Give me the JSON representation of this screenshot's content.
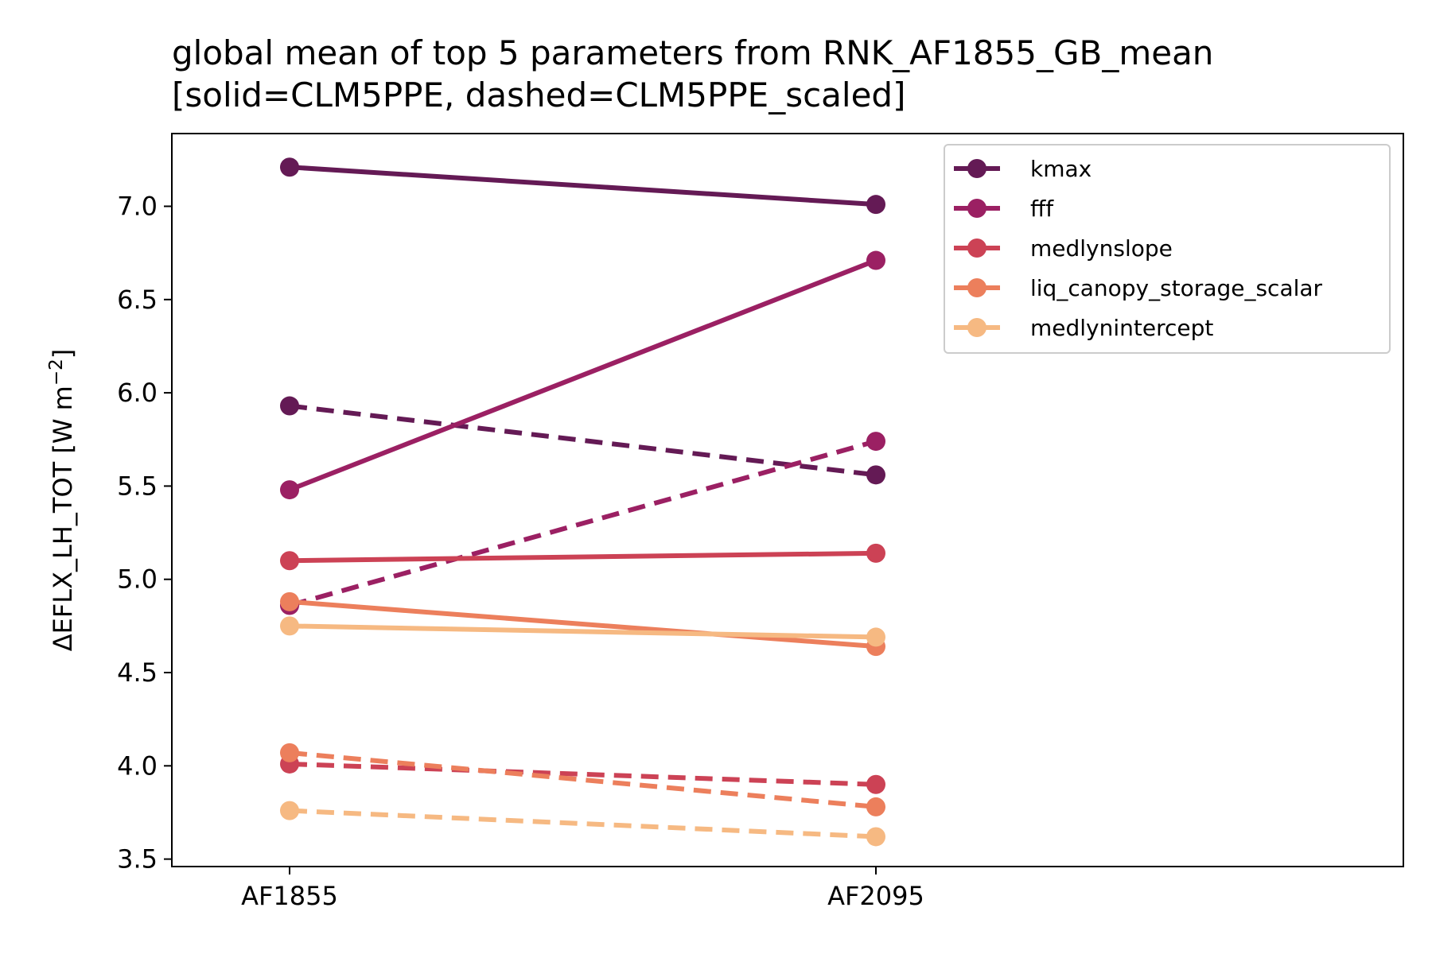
{
  "chart_data": {
    "type": "line",
    "title": "global mean of top 5 parameters from RNK_AF1855_GB_mean",
    "subtitle": "[solid=CLM5PPE, dashed=CLM5PPE_scaled]",
    "xlabel": "",
    "ylabel": "ΔEFLX_LH_TOT [W m⁻²]",
    "ylabel_parts": {
      "main": "ΔEFLX_LH_TOT [W m",
      "exp": "−2",
      "close": "]"
    },
    "categories": [
      "AF1855",
      "AF2095"
    ],
    "ylim": [
      3.46,
      7.39
    ],
    "yticks": [
      "3.5",
      "4.0",
      "4.5",
      "5.0",
      "5.5",
      "6.0",
      "6.5",
      "7.0"
    ],
    "grid": false,
    "legend_position": "top-right",
    "series": [
      {
        "name": "kmax",
        "color": "#641a55",
        "solid": [
          7.21,
          7.01
        ],
        "dashed": [
          5.93,
          5.56
        ]
      },
      {
        "name": "fff",
        "color": "#9b2063",
        "solid": [
          5.48,
          6.71
        ],
        "dashed": [
          4.86,
          5.74
        ]
      },
      {
        "name": "medlynslope",
        "color": "#cc4255",
        "solid": [
          5.1,
          5.14
        ],
        "dashed": [
          4.01,
          3.9
        ]
      },
      {
        "name": "liq_canopy_storage_scalar",
        "color": "#ec7f5c",
        "solid": [
          4.88,
          4.64
        ],
        "dashed": [
          4.07,
          3.78
        ]
      },
      {
        "name": "medlynintercept",
        "color": "#f6b982",
        "solid": [
          4.75,
          4.69
        ],
        "dashed": [
          3.76,
          3.62
        ]
      }
    ]
  }
}
